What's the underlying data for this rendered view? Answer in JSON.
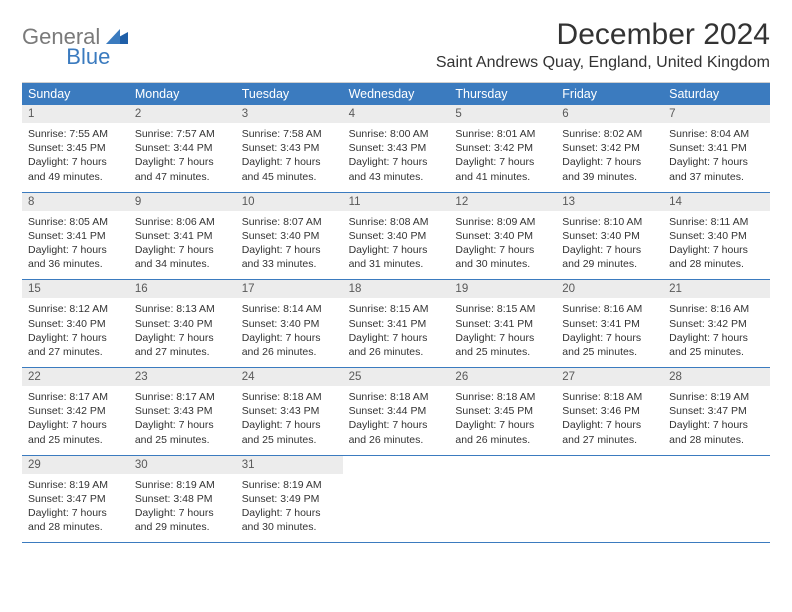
{
  "logo": {
    "part1": "General",
    "part2": "Blue"
  },
  "title": "December 2024",
  "location": "Saint Andrews Quay, England, United Kingdom",
  "colors": {
    "header_bg": "#3b7bbf",
    "header_text": "#ffffff",
    "daynum_bg": "#ececec",
    "daynum_text": "#595959",
    "body_text": "#333333",
    "week_border": "#3b7bbf",
    "logo_gray": "#7a7a7a",
    "logo_blue": "#3b7bbf",
    "page_bg": "#ffffff"
  },
  "day_labels": [
    "Sunday",
    "Monday",
    "Tuesday",
    "Wednesday",
    "Thursday",
    "Friday",
    "Saturday"
  ],
  "days": [
    {
      "n": "1",
      "sr": "7:55 AM",
      "ss": "3:45 PM",
      "dl": "7 hours and 49 minutes."
    },
    {
      "n": "2",
      "sr": "7:57 AM",
      "ss": "3:44 PM",
      "dl": "7 hours and 47 minutes."
    },
    {
      "n": "3",
      "sr": "7:58 AM",
      "ss": "3:43 PM",
      "dl": "7 hours and 45 minutes."
    },
    {
      "n": "4",
      "sr": "8:00 AM",
      "ss": "3:43 PM",
      "dl": "7 hours and 43 minutes."
    },
    {
      "n": "5",
      "sr": "8:01 AM",
      "ss": "3:42 PM",
      "dl": "7 hours and 41 minutes."
    },
    {
      "n": "6",
      "sr": "8:02 AM",
      "ss": "3:42 PM",
      "dl": "7 hours and 39 minutes."
    },
    {
      "n": "7",
      "sr": "8:04 AM",
      "ss": "3:41 PM",
      "dl": "7 hours and 37 minutes."
    },
    {
      "n": "8",
      "sr": "8:05 AM",
      "ss": "3:41 PM",
      "dl": "7 hours and 36 minutes."
    },
    {
      "n": "9",
      "sr": "8:06 AM",
      "ss": "3:41 PM",
      "dl": "7 hours and 34 minutes."
    },
    {
      "n": "10",
      "sr": "8:07 AM",
      "ss": "3:40 PM",
      "dl": "7 hours and 33 minutes."
    },
    {
      "n": "11",
      "sr": "8:08 AM",
      "ss": "3:40 PM",
      "dl": "7 hours and 31 minutes."
    },
    {
      "n": "12",
      "sr": "8:09 AM",
      "ss": "3:40 PM",
      "dl": "7 hours and 30 minutes."
    },
    {
      "n": "13",
      "sr": "8:10 AM",
      "ss": "3:40 PM",
      "dl": "7 hours and 29 minutes."
    },
    {
      "n": "14",
      "sr": "8:11 AM",
      "ss": "3:40 PM",
      "dl": "7 hours and 28 minutes."
    },
    {
      "n": "15",
      "sr": "8:12 AM",
      "ss": "3:40 PM",
      "dl": "7 hours and 27 minutes."
    },
    {
      "n": "16",
      "sr": "8:13 AM",
      "ss": "3:40 PM",
      "dl": "7 hours and 27 minutes."
    },
    {
      "n": "17",
      "sr": "8:14 AM",
      "ss": "3:40 PM",
      "dl": "7 hours and 26 minutes."
    },
    {
      "n": "18",
      "sr": "8:15 AM",
      "ss": "3:41 PM",
      "dl": "7 hours and 26 minutes."
    },
    {
      "n": "19",
      "sr": "8:15 AM",
      "ss": "3:41 PM",
      "dl": "7 hours and 25 minutes."
    },
    {
      "n": "20",
      "sr": "8:16 AM",
      "ss": "3:41 PM",
      "dl": "7 hours and 25 minutes."
    },
    {
      "n": "21",
      "sr": "8:16 AM",
      "ss": "3:42 PM",
      "dl": "7 hours and 25 minutes."
    },
    {
      "n": "22",
      "sr": "8:17 AM",
      "ss": "3:42 PM",
      "dl": "7 hours and 25 minutes."
    },
    {
      "n": "23",
      "sr": "8:17 AM",
      "ss": "3:43 PM",
      "dl": "7 hours and 25 minutes."
    },
    {
      "n": "24",
      "sr": "8:18 AM",
      "ss": "3:43 PM",
      "dl": "7 hours and 25 minutes."
    },
    {
      "n": "25",
      "sr": "8:18 AM",
      "ss": "3:44 PM",
      "dl": "7 hours and 26 minutes."
    },
    {
      "n": "26",
      "sr": "8:18 AM",
      "ss": "3:45 PM",
      "dl": "7 hours and 26 minutes."
    },
    {
      "n": "27",
      "sr": "8:18 AM",
      "ss": "3:46 PM",
      "dl": "7 hours and 27 minutes."
    },
    {
      "n": "28",
      "sr": "8:19 AM",
      "ss": "3:47 PM",
      "dl": "7 hours and 28 minutes."
    },
    {
      "n": "29",
      "sr": "8:19 AM",
      "ss": "3:47 PM",
      "dl": "7 hours and 28 minutes."
    },
    {
      "n": "30",
      "sr": "8:19 AM",
      "ss": "3:48 PM",
      "dl": "7 hours and 29 minutes."
    },
    {
      "n": "31",
      "sr": "8:19 AM",
      "ss": "3:49 PM",
      "dl": "7 hours and 30 minutes."
    }
  ],
  "labels": {
    "sunrise": "Sunrise: ",
    "sunset": "Sunset: ",
    "daylight": "Daylight: "
  },
  "layout": {
    "columns": 7,
    "rows": 5,
    "trailing_empty": 4
  }
}
